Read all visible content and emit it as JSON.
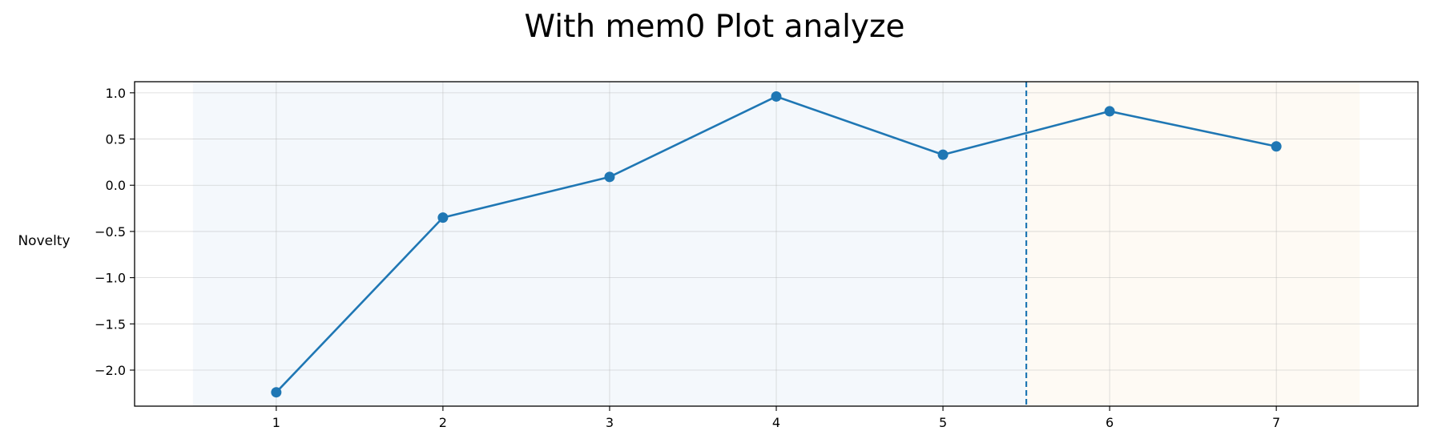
{
  "chart_data": {
    "type": "line",
    "title": "With mem0 Plot analyze",
    "xlabel": "",
    "ylabel": "Novelty",
    "x": [
      1,
      2,
      3,
      4,
      5,
      6,
      7
    ],
    "series": [
      {
        "values": [
          -2.24,
          -0.35,
          0.09,
          0.96,
          0.33,
          0.8,
          0.42
        ],
        "color": "#1f77b4",
        "marker": "circle"
      }
    ],
    "xticks": [
      1,
      2,
      3,
      4,
      5,
      6,
      7
    ],
    "yticks": [
      1.0,
      0.5,
      0.0,
      -0.5,
      -1.0,
      -1.5,
      -2.0
    ],
    "ytick_labels": [
      "1.0",
      "0.5",
      "0.0",
      "−0.5",
      "−1.0",
      "−1.5",
      "−2.0"
    ],
    "xlim": [
      0.15,
      7.85
    ],
    "ylim": [
      -2.39,
      1.12
    ],
    "grid": true,
    "shaded_regions": [
      {
        "from": 0.5,
        "to": 5.5,
        "color": "#f4f8fc"
      },
      {
        "from": 5.5,
        "to": 7.5,
        "color": "#fefaf4"
      }
    ],
    "vertical_line": {
      "x": 5.5,
      "style": "dashed",
      "color": "#1f77b4"
    }
  }
}
